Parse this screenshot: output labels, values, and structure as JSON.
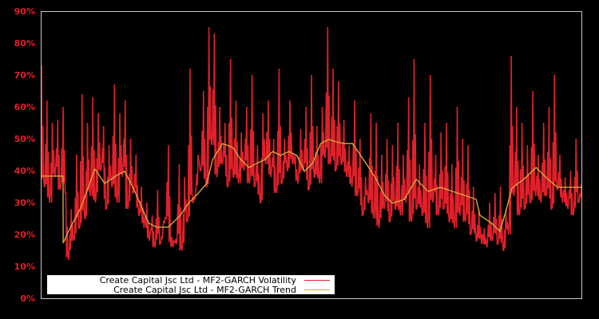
{
  "chart_data": {
    "type": "line",
    "title": "",
    "xlabel": "",
    "ylabel": "",
    "ylim": [
      0,
      90
    ],
    "y_tick_labels": [
      "0%",
      "10%",
      "20%",
      "30%",
      "40%",
      "50%",
      "60%",
      "70%",
      "80%",
      "90%"
    ],
    "y_ticks": [
      0,
      10,
      20,
      30,
      40,
      50,
      60,
      70,
      80,
      90
    ],
    "grid": false,
    "legend_position": "lower-left",
    "background": "#000000",
    "axis_color": "#c8c8c8",
    "tick_label_color": "#e0202a",
    "x_range": [
      0,
      1
    ],
    "series": [
      {
        "name": "Create Capital Jsc Ltd - MF2-GARCH Volatility",
        "color": "#e0202a",
        "x": [
          0.0,
          0.005,
          0.01,
          0.015,
          0.02,
          0.025,
          0.03,
          0.035,
          0.04,
          0.045,
          0.05,
          0.055,
          0.06,
          0.065,
          0.07,
          0.075,
          0.08,
          0.085,
          0.09,
          0.095,
          0.1,
          0.105,
          0.11,
          0.115,
          0.12,
          0.125,
          0.13,
          0.135,
          0.14,
          0.145,
          0.15,
          0.155,
          0.16,
          0.165,
          0.17,
          0.175,
          0.18,
          0.185,
          0.19,
          0.195,
          0.2,
          0.205,
          0.21,
          0.215,
          0.22,
          0.225,
          0.23,
          0.235,
          0.24,
          0.245,
          0.25,
          0.255,
          0.26,
          0.265,
          0.27,
          0.275,
          0.28,
          0.285,
          0.29,
          0.295,
          0.3,
          0.305,
          0.31,
          0.315,
          0.32,
          0.325,
          0.33,
          0.335,
          0.34,
          0.345,
          0.35,
          0.355,
          0.36,
          0.365,
          0.37,
          0.375,
          0.38,
          0.385,
          0.39,
          0.395,
          0.4,
          0.405,
          0.41,
          0.415,
          0.42,
          0.425,
          0.43,
          0.435,
          0.44,
          0.445,
          0.45,
          0.455,
          0.46,
          0.465,
          0.47,
          0.475,
          0.48,
          0.485,
          0.49,
          0.495,
          0.5,
          0.505,
          0.51,
          0.515,
          0.52,
          0.525,
          0.53,
          0.535,
          0.54,
          0.545,
          0.55,
          0.555,
          0.56,
          0.565,
          0.57,
          0.575,
          0.58,
          0.585,
          0.59,
          0.595,
          0.6,
          0.605,
          0.61,
          0.615,
          0.62,
          0.625,
          0.63,
          0.635,
          0.64,
          0.645,
          0.65,
          0.655,
          0.66,
          0.665,
          0.67,
          0.675,
          0.68,
          0.685,
          0.69,
          0.695,
          0.7,
          0.705,
          0.71,
          0.715,
          0.72,
          0.725,
          0.73,
          0.735,
          0.74,
          0.745,
          0.75,
          0.755,
          0.76,
          0.765,
          0.77,
          0.775,
          0.78,
          0.785,
          0.79,
          0.795,
          0.8,
          0.805,
          0.81,
          0.815,
          0.82,
          0.825,
          0.83,
          0.835,
          0.84,
          0.845,
          0.85,
          0.855,
          0.86,
          0.865,
          0.87,
          0.875,
          0.88,
          0.885,
          0.89,
          0.895,
          0.9,
          0.905,
          0.91,
          0.915,
          0.92,
          0.925,
          0.93,
          0.935,
          0.94,
          0.945,
          0.95,
          0.955,
          0.96,
          0.965,
          0.97,
          0.975,
          0.98,
          0.985,
          0.99,
          0.995,
          1.0
        ],
        "values": [
          73,
          35,
          62,
          30,
          55,
          38,
          56,
          34,
          60,
          33,
          12,
          28,
          18,
          45,
          22,
          64,
          25,
          55,
          32,
          63,
          30,
          58,
          40,
          54,
          28,
          48,
          35,
          67,
          30,
          58,
          38,
          62,
          28,
          50,
          33,
          45,
          26,
          35,
          22,
          30,
          18,
          26,
          16,
          34,
          17,
          22,
          25,
          48,
          16,
          18,
          17,
          42,
          15,
          38,
          24,
          72,
          30,
          33,
          45,
          40,
          65,
          35,
          85,
          48,
          83,
          38,
          60,
          42,
          55,
          35,
          75,
          38,
          62,
          36,
          52,
          40,
          60,
          36,
          70,
          35,
          48,
          30,
          58,
          42,
          62,
          38,
          50,
          33,
          72,
          36,
          50,
          40,
          62,
          42,
          45,
          36,
          53,
          40,
          60,
          34,
          70,
          38,
          54,
          36,
          60,
          44,
          85,
          42,
          72,
          40,
          68,
          42,
          56,
          38,
          48,
          35,
          62,
          32,
          50,
          26,
          38,
          30,
          58,
          25,
          55,
          22,
          45,
          28,
          50,
          24,
          48,
          28,
          55,
          26,
          45,
          30,
          63,
          24,
          75,
          28,
          42,
          26,
          55,
          22,
          70,
          30,
          45,
          26,
          52,
          28,
          55,
          24,
          42,
          22,
          60,
          26,
          50,
          24,
          48,
          20,
          35,
          18,
          28,
          17,
          22,
          16,
          30,
          18,
          33,
          17,
          35,
          15,
          28,
          20,
          76,
          32,
          60,
          26,
          55,
          28,
          48,
          30,
          65,
          32,
          45,
          30,
          55,
          32,
          60,
          28,
          70,
          34,
          45,
          30,
          38,
          28,
          40,
          26,
          50,
          30,
          36
        ]
      },
      {
        "name": "Create Capital Jsc Ltd - MF2-GARCH Trend",
        "color": "#d4a93a",
        "x": [
          0.0,
          0.04,
          0.0401,
          0.05,
          0.073,
          0.099,
          0.117,
          0.139,
          0.154,
          0.173,
          0.192,
          0.199,
          0.213,
          0.235,
          0.242,
          0.257,
          0.272,
          0.287,
          0.306,
          0.317,
          0.335,
          0.354,
          0.369,
          0.384,
          0.399,
          0.414,
          0.428,
          0.443,
          0.458,
          0.473,
          0.487,
          0.502,
          0.517,
          0.532,
          0.547,
          0.561,
          0.576,
          0.591,
          0.606,
          0.62,
          0.635,
          0.65,
          0.672,
          0.694,
          0.694,
          0.716,
          0.739,
          0.761,
          0.783,
          0.805,
          0.812,
          0.834,
          0.849,
          0.861,
          0.871,
          0.893,
          0.916,
          0.938,
          0.956,
          0.975,
          1.0
        ],
        "values": [
          38.3,
          38.3,
          17.3,
          21,
          28.5,
          40.5,
          36,
          38.5,
          39.8,
          33.5,
          26,
          23.5,
          22.3,
          22.3,
          23.5,
          26,
          29.8,
          32.3,
          36,
          43.5,
          48.5,
          47.3,
          43.5,
          41,
          42.3,
          43.5,
          46,
          44.8,
          46,
          44.8,
          39.8,
          42.3,
          48.5,
          49.8,
          49,
          48.5,
          48.5,
          44.8,
          41,
          37.3,
          32.3,
          29.8,
          31,
          37.3,
          37.3,
          33.5,
          34.8,
          33.5,
          32.3,
          31,
          26,
          23.5,
          21,
          27.8,
          34.5,
          37.3,
          41,
          37.3,
          34.8,
          34.8,
          34.8
        ]
      }
    ]
  },
  "legend": {
    "items": [
      {
        "label": "Create Capital Jsc Ltd - MF2-GARCH Volatility",
        "color": "#e0202a"
      },
      {
        "label": "Create Capital Jsc Ltd - MF2-GARCH Trend",
        "color": "#d4a93a"
      }
    ]
  }
}
